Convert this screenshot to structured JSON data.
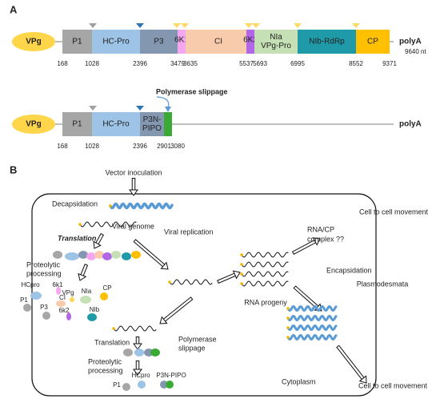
{
  "panel_a": {
    "label": "A",
    "genome": {
      "vpg": "VPg",
      "segments": [
        "P1",
        "HC-Pro",
        "P3",
        "6K1",
        "CI",
        "6K2",
        [
          "NIa",
          "VPg-Pro"
        ],
        "NIb-RdRp",
        "CP"
      ],
      "positions": [
        168,
        1028,
        2396,
        3479,
        3635,
        5537,
        5693,
        6995,
        8552,
        9371
      ],
      "polya": "polyA",
      "length": "9640 nt"
    },
    "pipo": {
      "vpg": "VPg",
      "segments": [
        "P1",
        "HC-Pro",
        [
          "P3N-",
          "PIPO"
        ]
      ],
      "positions": [
        168,
        1028,
        2396,
        2901,
        3080
      ],
      "polya": "polyA",
      "annotation": "Polymerase slippage"
    }
  },
  "panel_b": {
    "label": "B",
    "vector_inoculation": "Vector inoculation",
    "decapsidation": "Decapsidation",
    "viral_genome": "Viral genome",
    "translation_1": "Translation",
    "proteolytic_processing_1": [
      "Proteolytic",
      "processing"
    ],
    "proteins_1": [
      "HCpro",
      "6k1",
      "VPg",
      "NIa",
      "CP",
      "P1",
      "CI",
      "P3",
      "6k2",
      "NIb"
    ],
    "viral_replication": "Viral replication",
    "rna_progeny": "RNA progeny",
    "rna_cp_complex": [
      "RNA/CP",
      "complex ??"
    ],
    "cell_to_cell_1": "Cell to cell movement",
    "plasmodesmata": "Plasmodesmata",
    "encapsidation": "Encapsidation",
    "polymerase_slippage": [
      "Polymerase",
      "slippage"
    ],
    "translation_2": "Translation",
    "proteolytic_processing_2": [
      "Proteolytic",
      "processing"
    ],
    "proteins_2": [
      "HCpro",
      "P3N-PIPO",
      "P1"
    ],
    "cytoplasm": "Cytoplasm",
    "cell_to_cell_2": "Cell to cell movement"
  }
}
